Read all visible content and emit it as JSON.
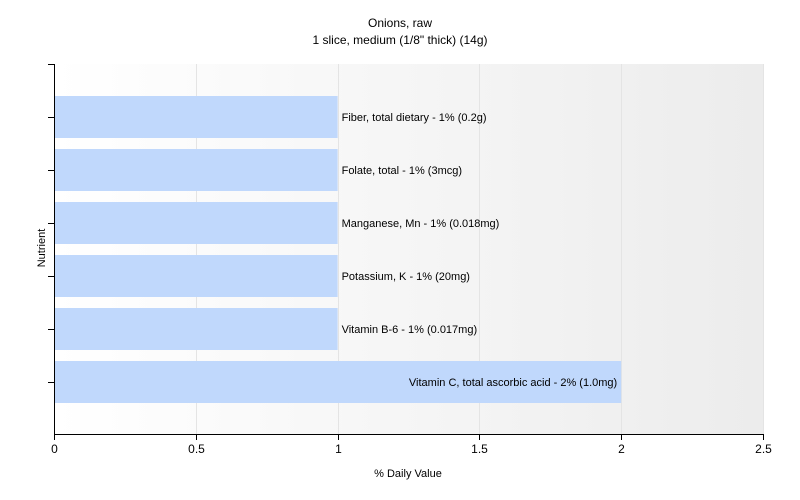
{
  "chart_data": {
    "type": "bar",
    "orientation": "horizontal",
    "title": "Onions, raw",
    "subtitle": "1 slice, medium (1/8\" thick) (14g)",
    "xlabel": "% Daily Value",
    "ylabel": "Nutrient",
    "xlim": [
      0,
      2.5
    ],
    "x_ticks": [
      "0",
      "0.5",
      "1",
      "1.5",
      "2",
      "2.5"
    ],
    "x_tick_values": [
      0,
      0.5,
      1,
      1.5,
      2,
      2.5
    ],
    "grid": true,
    "categories": [
      "Fiber, total dietary",
      "Folate, total",
      "Manganese, Mn",
      "Potassium, K",
      "Vitamin B-6",
      "Vitamin C, total ascorbic acid"
    ],
    "values": [
      1,
      1,
      1,
      1,
      1,
      2
    ],
    "labels": [
      "Fiber, total dietary - 1% (0.2g)",
      "Folate, total - 1% (3mcg)",
      "Manganese, Mn - 1% (0.018mg)",
      "Potassium, K - 1% (20mg)",
      "Vitamin B-6 - 1% (0.017mg)",
      "Vitamin C, total ascorbic acid - 2% (1.0mg)"
    ],
    "colors": {
      "bar": "#c0d8fc",
      "grid": "#e4e4e4",
      "axis": "#000000"
    }
  }
}
